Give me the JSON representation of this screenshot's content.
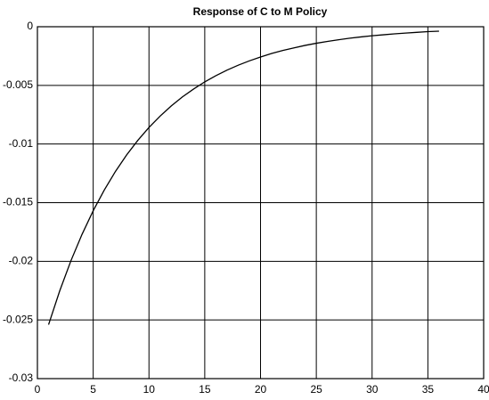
{
  "chart_data": {
    "type": "line",
    "title": "Response of C to M Policy",
    "x": [
      1,
      2,
      3,
      4,
      5,
      6,
      7,
      8,
      9,
      10,
      11,
      12,
      13,
      14,
      15,
      16,
      17,
      18,
      19,
      20,
      21,
      22,
      23,
      24,
      25,
      26,
      27,
      28,
      29,
      30,
      31,
      32,
      33,
      34,
      35,
      36
    ],
    "series": [
      {
        "color": "#000000",
        "values": [
          -0.0254,
          -0.02252,
          -0.01996,
          -0.0177,
          -0.01569,
          -0.01391,
          -0.01233,
          -0.01093,
          -0.00969,
          -0.00859,
          -0.00762,
          -0.00675,
          -0.00598,
          -0.00531,
          -0.0047,
          -0.00417,
          -0.0037,
          -0.00328,
          -0.00291,
          -0.00258,
          -0.00228,
          -0.00202,
          -0.0018,
          -0.00159,
          -0.00141,
          -0.00125,
          -0.00111,
          -0.00098,
          -0.00087,
          -0.00077,
          -0.00069,
          -0.00061,
          -0.00054,
          -0.00048,
          -0.00042,
          -0.00038
        ]
      }
    ],
    "xlim": [
      0,
      40
    ],
    "xticks": [
      0,
      5,
      10,
      15,
      20,
      25,
      30,
      35,
      40
    ],
    "ylim": [
      -0.03,
      0
    ],
    "yticks": [
      0,
      -0.005,
      -0.01,
      -0.015,
      -0.02,
      -0.025,
      -0.03
    ],
    "grid": true
  }
}
